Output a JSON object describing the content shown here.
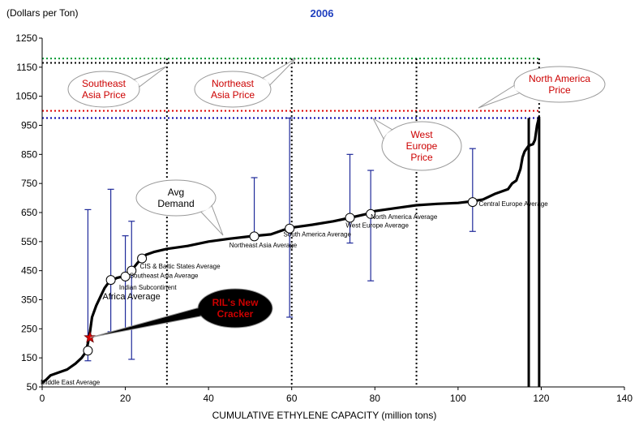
{
  "chart_data": {
    "type": "line",
    "title": "2006",
    "ylabel": "(Dollars per Ton)",
    "xlabel": "CUMULATIVE ETHYLENE CAPACITY (million tons)",
    "xlim": [
      0,
      140
    ],
    "ylim": [
      50,
      1250
    ],
    "xticks": [
      0,
      20,
      40,
      60,
      80,
      100,
      120,
      140
    ],
    "yticks": [
      50,
      150,
      250,
      350,
      450,
      550,
      650,
      750,
      850,
      950,
      1050,
      1150,
      1250
    ],
    "grid": false,
    "colors": {
      "curve": "#000000",
      "error_bar": "#1f2a9a",
      "title": "#1f3fbf",
      "callout_text": "#cc0000",
      "southeast_asia_price_line": "#009933",
      "northeast_asia_price_line": "#000000",
      "north_america_price_line": "#dd0000",
      "west_europe_price_line": "#0000aa",
      "ril_callout_fill": "#ffff00",
      "star": "#dd0000"
    },
    "cost_curve": [
      [
        0,
        65
      ],
      [
        1,
        75
      ],
      [
        2,
        90
      ],
      [
        4,
        100
      ],
      [
        6,
        110
      ],
      [
        8,
        130
      ],
      [
        9.5,
        150
      ],
      [
        10.5,
        170
      ],
      [
        11,
        200
      ],
      [
        11.5,
        240
      ],
      [
        12,
        290
      ],
      [
        13,
        330
      ],
      [
        14,
        360
      ],
      [
        15,
        390
      ],
      [
        16,
        410
      ],
      [
        17,
        418
      ],
      [
        18,
        425
      ],
      [
        20,
        432
      ],
      [
        21,
        445
      ],
      [
        22,
        460
      ],
      [
        23,
        478
      ],
      [
        24,
        492
      ],
      [
        25,
        505
      ],
      [
        27,
        515
      ],
      [
        30,
        525
      ],
      [
        35,
        535
      ],
      [
        40,
        550
      ],
      [
        45,
        560
      ],
      [
        50,
        568
      ],
      [
        55,
        575
      ],
      [
        58,
        590
      ],
      [
        60,
        598
      ],
      [
        65,
        608
      ],
      [
        70,
        620
      ],
      [
        74,
        632
      ],
      [
        78,
        645
      ],
      [
        80,
        655
      ],
      [
        85,
        665
      ],
      [
        90,
        675
      ],
      [
        95,
        680
      ],
      [
        100,
        683
      ],
      [
        103,
        688
      ],
      [
        106,
        695
      ],
      [
        109,
        715
      ],
      [
        112,
        730
      ],
      [
        113,
        750
      ],
      [
        114,
        760
      ],
      [
        115,
        800
      ],
      [
        115.5,
        840
      ],
      [
        116,
        860
      ],
      [
        117,
        880
      ],
      [
        118,
        885
      ],
      [
        118.5,
        900
      ],
      [
        119,
        950
      ],
      [
        119.5,
        980
      ]
    ],
    "capacity_vertical_lines": [
      117,
      119.5
    ],
    "averages": [
      {
        "label": "Middle East Average",
        "x": 11,
        "y": 175,
        "low": 140,
        "high": 660
      },
      {
        "label": "Africa Average",
        "x": 16.5,
        "y": 418,
        "low": 240,
        "high": 730
      },
      {
        "label": "Indian Subcontinent",
        "x": 20,
        "y": 430,
        "low": 250,
        "high": 570
      },
      {
        "label": "Southeast Asia Average",
        "x": 21.5,
        "y": 450,
        "low": 145,
        "high": 620
      },
      {
        "label": "CIS & Baltic States Average",
        "x": 24,
        "y": 492,
        "low": null,
        "high": null
      },
      {
        "label": "Northeast Asia Average",
        "x": 51,
        "y": 568,
        "low": 560,
        "high": 770
      },
      {
        "label": "South America Average",
        "x": 59.5,
        "y": 595,
        "low": 290,
        "high": 975
      },
      {
        "label": "West Europe Average",
        "x": 74,
        "y": 632,
        "low": 545,
        "high": 850
      },
      {
        "label": "North America Average",
        "x": 79,
        "y": 645,
        "low": 415,
        "high": 795
      },
      {
        "label": "Central Europe Average",
        "x": 103.5,
        "y": 686,
        "low": 585,
        "high": 870
      }
    ],
    "price_lines": [
      {
        "name": "Southeast Asia Price",
        "y": 1180,
        "color": "#009933"
      },
      {
        "name": "Northeast Asia Price",
        "y": 1165,
        "color": "#000000"
      },
      {
        "name": "North America Price",
        "y": 1000,
        "color": "#dd0000"
      },
      {
        "name": "West Europe Price",
        "y": 975,
        "color": "#0000aa"
      }
    ],
    "demand_verticals": [
      30,
      60,
      90,
      119.5
    ],
    "callouts": {
      "southeast_asia": [
        "Southeast",
        "Asia Price"
      ],
      "northeast_asia": [
        "Northeast",
        "Asia Price"
      ],
      "north_america": [
        "North America",
        "Price"
      ],
      "west_europe": [
        "West",
        "Europe",
        "Price"
      ],
      "avg_demand": [
        "Avg",
        "Demand"
      ],
      "rils_cracker": [
        "RIL's New",
        "Cracker"
      ]
    },
    "rils_cracker_point": {
      "x": 11.5,
      "y": 220
    }
  }
}
